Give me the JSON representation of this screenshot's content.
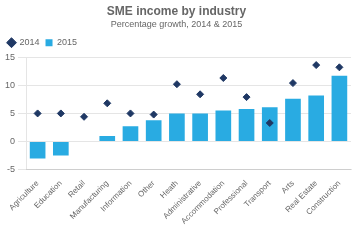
{
  "chart_data": {
    "type": "bar",
    "title": "SME income by industry",
    "subtitle": "Percentage growth, 2014 & 2015",
    "categories": [
      "Agriculture",
      "Education",
      "Retail",
      "Manufacturing",
      "Information",
      "Other",
      "Heath",
      "Administrative",
      "Accommodation",
      "Professional",
      "Transport",
      "Arts",
      "Real Estate",
      "Construction"
    ],
    "series": [
      {
        "name": "2015",
        "type": "bar",
        "color": "#29ABE2",
        "values": [
          -3.0,
          -2.5,
          0.0,
          1.0,
          2.7,
          3.8,
          5.0,
          5.0,
          5.5,
          5.8,
          6.1,
          7.6,
          8.2,
          11.7
        ]
      },
      {
        "name": "2014",
        "type": "scatter",
        "marker": "diamond",
        "color": "#1F3864",
        "values": [
          5.0,
          5.0,
          4.4,
          6.8,
          5.0,
          4.8,
          10.2,
          8.4,
          11.3,
          7.9,
          3.3,
          10.4,
          13.6,
          13.2
        ]
      }
    ],
    "ylim": [
      -5,
      15
    ],
    "yticks": [
      -5,
      0,
      5,
      10,
      15
    ],
    "grid": true,
    "legend": "upper left"
  }
}
